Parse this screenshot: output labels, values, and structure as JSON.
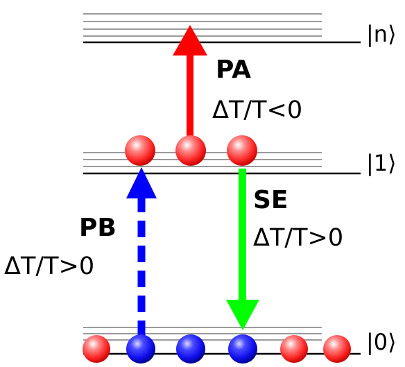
{
  "levels": {
    "n": {
      "label": "|n⟩"
    },
    "one": {
      "label": "|1⟩"
    },
    "zero": {
      "label": "|0⟩"
    }
  },
  "processes": {
    "pa": {
      "name": "PA",
      "condition": "ΔT/T<0",
      "color": "#ff0000",
      "style": "solid arrow up"
    },
    "pb": {
      "name": "PB",
      "condition": "ΔT/T>0",
      "color": "#0000ff",
      "style": "dashed arrow up"
    },
    "se": {
      "name": "SE",
      "condition": "ΔT/T>0",
      "color": "#00ff00",
      "style": "solid arrow down"
    }
  },
  "particles": {
    "level_one": [
      "red",
      "red",
      "red"
    ],
    "level_zero": [
      "red",
      "blue",
      "blue",
      "blue",
      "red",
      "red"
    ]
  },
  "colors": {
    "particle_red": "#ff3b3b",
    "particle_blue": "#1f1fff",
    "level_line": "#000000",
    "sublevel_line": "#9a9a9a"
  }
}
